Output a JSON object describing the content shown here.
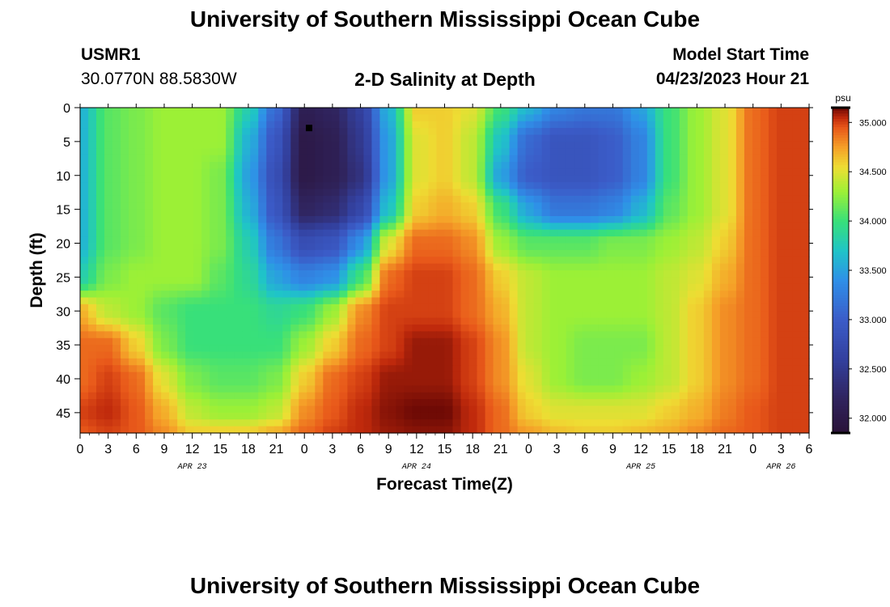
{
  "page": {
    "title": "University of Southern Mississippi Ocean Cube",
    "station_id": "USMR1",
    "station_coords": "30.0770N  88.5830W",
    "subtitle": "2-D Salinity at Depth",
    "model_start_label": "Model Start Time",
    "model_start_value": "04/23/2023 Hour 21",
    "bottom_title": "University of Southern Mississippi Ocean Cube"
  },
  "chart_data": {
    "type": "heatmap",
    "title": "2-D Salinity at Depth",
    "xlabel": "Forecast Time(Z)",
    "ylabel": "Depth (ft)",
    "xlim": [
      0,
      78
    ],
    "ylim": [
      48,
      0
    ],
    "x_ticks": [
      0,
      3,
      6,
      9,
      12,
      15,
      18,
      21,
      24,
      27,
      30,
      33,
      36,
      39,
      42,
      45,
      48,
      51,
      54,
      57,
      60,
      63,
      66,
      69,
      72,
      75,
      78
    ],
    "x_tick_labels": [
      "0",
      "3",
      "6",
      "9",
      "12",
      "15",
      "18",
      "21",
      "0",
      "3",
      "6",
      "9",
      "12",
      "15",
      "18",
      "21",
      "0",
      "3",
      "6",
      "9",
      "12",
      "15",
      "18",
      "21",
      "0",
      "3",
      "6"
    ],
    "y_ticks": [
      0,
      5,
      10,
      15,
      20,
      25,
      30,
      35,
      40,
      45
    ],
    "date_labels": [
      {
        "x": 12,
        "text": "APR 23"
      },
      {
        "x": 36,
        "text": "APR 24"
      },
      {
        "x": 60,
        "text": "APR 25"
      },
      {
        "x": 75,
        "text": "APR 26"
      }
    ],
    "colorbar": {
      "unit": "psu",
      "min": 31.85,
      "max": 35.15,
      "ticks": [
        35.0,
        34.5,
        34.0,
        33.5,
        33.0,
        32.5,
        32.0
      ],
      "tick_labels": [
        "35.000",
        "34.500",
        "34.000",
        "33.500",
        "33.000",
        "32.500",
        "32.000"
      ]
    },
    "colormap": [
      [
        31.85,
        "#2a1238"
      ],
      [
        32.2,
        "#30245e"
      ],
      [
        32.6,
        "#33409e"
      ],
      [
        33.0,
        "#3b5cc8"
      ],
      [
        33.4,
        "#2f8fe8"
      ],
      [
        33.7,
        "#1fc4c8"
      ],
      [
        34.0,
        "#38e07a"
      ],
      [
        34.3,
        "#9cf036"
      ],
      [
        34.55,
        "#eedd33"
      ],
      [
        34.75,
        "#f5a028"
      ],
      [
        34.95,
        "#e8581a"
      ],
      [
        35.05,
        "#c02a0c"
      ],
      [
        35.15,
        "#6e0a05"
      ]
    ],
    "grid_times": [
      0,
      3,
      6,
      9,
      12,
      15,
      18,
      21,
      24,
      27,
      30,
      33,
      36,
      39,
      42,
      45,
      48,
      51,
      54,
      57,
      60,
      63,
      66,
      69,
      72,
      75,
      78
    ],
    "grid_depths": [
      0,
      5,
      10,
      15,
      20,
      25,
      30,
      35,
      40,
      45,
      48
    ],
    "salinity_grid": [
      [
        33.6,
        34.1,
        34.2,
        34.3,
        34.3,
        34.3,
        33.8,
        33.1,
        32.1,
        32.2,
        32.6,
        33.6,
        34.6,
        34.6,
        34.5,
        34.0,
        33.6,
        33.3,
        33.2,
        33.2,
        33.5,
        34.0,
        34.3,
        34.5,
        34.9,
        35.0,
        35.0
      ],
      [
        33.6,
        34.1,
        34.2,
        34.3,
        34.3,
        34.3,
        33.6,
        32.9,
        32.0,
        32.1,
        32.5,
        33.5,
        34.5,
        34.6,
        34.4,
        33.7,
        33.1,
        32.9,
        32.9,
        33.0,
        33.3,
        34.0,
        34.3,
        34.5,
        34.9,
        35.0,
        35.0
      ],
      [
        33.6,
        34.1,
        34.2,
        34.3,
        34.3,
        34.2,
        33.5,
        32.8,
        32.0,
        32.1,
        32.4,
        33.5,
        34.5,
        34.6,
        34.4,
        33.5,
        33.0,
        32.9,
        32.9,
        33.0,
        33.3,
        34.0,
        34.3,
        34.5,
        34.9,
        35.0,
        35.0
      ],
      [
        33.6,
        34.1,
        34.2,
        34.3,
        34.3,
        34.2,
        33.6,
        32.9,
        32.2,
        32.3,
        32.7,
        33.7,
        34.6,
        34.7,
        34.6,
        34.0,
        33.5,
        33.2,
        33.2,
        33.3,
        33.6,
        34.1,
        34.3,
        34.5,
        34.9,
        35.0,
        35.0
      ],
      [
        33.6,
        34.1,
        34.2,
        34.3,
        34.3,
        34.2,
        33.8,
        33.2,
        32.8,
        32.9,
        33.4,
        34.5,
        34.9,
        34.9,
        34.8,
        34.3,
        34.1,
        34.1,
        34.1,
        34.2,
        34.2,
        34.3,
        34.4,
        34.6,
        34.9,
        35.0,
        35.0
      ],
      [
        33.8,
        34.2,
        34.3,
        34.3,
        34.3,
        34.1,
        33.9,
        33.5,
        33.3,
        33.4,
        34.0,
        34.9,
        35.0,
        35.0,
        34.9,
        34.6,
        34.4,
        34.3,
        34.3,
        34.3,
        34.3,
        34.4,
        34.5,
        34.7,
        34.9,
        35.0,
        35.0
      ],
      [
        34.7,
        34.4,
        34.3,
        34.1,
        34.0,
        34.0,
        34.0,
        33.9,
        34.0,
        34.3,
        34.8,
        35.0,
        35.0,
        35.0,
        34.9,
        34.7,
        34.4,
        34.3,
        34.3,
        34.3,
        34.3,
        34.4,
        34.6,
        34.8,
        34.9,
        35.0,
        35.0
      ],
      [
        34.9,
        34.9,
        34.6,
        34.2,
        34.0,
        34.0,
        34.0,
        34.0,
        34.3,
        34.6,
        34.9,
        35.0,
        35.1,
        35.1,
        35.0,
        34.8,
        34.4,
        34.3,
        34.2,
        34.2,
        34.2,
        34.4,
        34.6,
        34.8,
        34.9,
        35.0,
        35.0
      ],
      [
        34.9,
        35.0,
        34.9,
        34.5,
        34.2,
        34.1,
        34.1,
        34.2,
        34.6,
        34.9,
        35.0,
        35.1,
        35.1,
        35.1,
        35.0,
        34.8,
        34.5,
        34.3,
        34.2,
        34.2,
        34.3,
        34.4,
        34.6,
        34.8,
        34.9,
        35.0,
        35.0
      ],
      [
        35.0,
        35.05,
        34.95,
        34.7,
        34.4,
        34.3,
        34.3,
        34.4,
        34.8,
        34.95,
        35.05,
        35.12,
        35.15,
        35.15,
        35.05,
        34.9,
        34.6,
        34.5,
        34.5,
        34.5,
        34.5,
        34.6,
        34.7,
        34.85,
        34.95,
        35.0,
        35.0
      ],
      [
        34.95,
        35.0,
        34.95,
        34.8,
        34.6,
        34.6,
        34.6,
        34.7,
        34.9,
        35.0,
        35.05,
        35.1,
        35.12,
        35.12,
        35.05,
        34.9,
        34.75,
        34.65,
        34.6,
        34.6,
        34.65,
        34.7,
        34.8,
        34.9,
        34.95,
        35.0,
        35.0
      ]
    ],
    "marker": {
      "x": 24.5,
      "y": 3
    }
  },
  "colors": {
    "background": "#ffffff",
    "text": "#000000",
    "axis": "#000000"
  }
}
